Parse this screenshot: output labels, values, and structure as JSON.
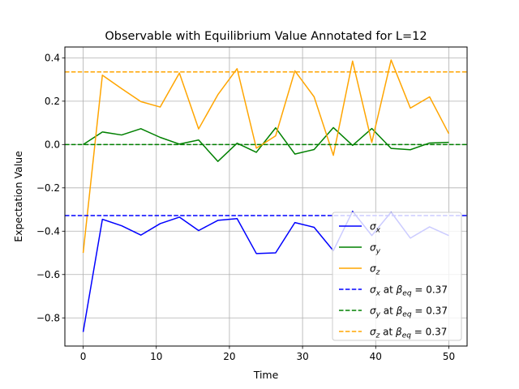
{
  "chart_data": {
    "type": "line",
    "title": "Observable with Equilibrium Value Annotated for L=12",
    "xlabel": "Time",
    "ylabel": "Expectation Value",
    "xlim": [
      -2.5,
      52.5
    ],
    "ylim": [
      -0.93,
      0.45
    ],
    "xticks": [
      0,
      10,
      20,
      30,
      40,
      50
    ],
    "yticks": [
      -0.8,
      -0.6,
      -0.4,
      -0.2,
      0.0,
      0.2,
      0.4
    ],
    "grid": true,
    "legend_position": "lower-right",
    "x": [
      0,
      2.63,
      5.26,
      7.89,
      10.53,
      13.16,
      15.79,
      18.42,
      21.05,
      23.68,
      26.32,
      28.95,
      31.58,
      34.21,
      36.84,
      39.47,
      42.11,
      44.74,
      47.37,
      50.0
    ],
    "series": [
      {
        "name": "σx",
        "color": "#0000ff",
        "style": "solid",
        "values": [
          -0.865,
          -0.345,
          -0.375,
          -0.418,
          -0.365,
          -0.335,
          -0.397,
          -0.35,
          -0.342,
          -0.503,
          -0.5,
          -0.36,
          -0.382,
          -0.49,
          -0.308,
          -0.42,
          -0.312,
          -0.432,
          -0.38,
          -0.42
        ]
      },
      {
        "name": "σy",
        "color": "#008000",
        "style": "solid",
        "values": [
          0.0,
          0.058,
          0.044,
          0.073,
          0.033,
          0.002,
          0.021,
          -0.078,
          0.006,
          -0.036,
          0.077,
          -0.044,
          -0.023,
          0.078,
          -0.004,
          0.074,
          -0.018,
          -0.024,
          0.007,
          0.01
        ]
      },
      {
        "name": "σz",
        "color": "#ffa500",
        "style": "solid",
        "values": [
          -0.5,
          0.32,
          0.258,
          0.198,
          0.173,
          0.33,
          0.072,
          0.23,
          0.35,
          -0.017,
          0.04,
          0.34,
          0.22,
          -0.05,
          0.385,
          0.01,
          0.39,
          0.168,
          0.22,
          0.05
        ]
      },
      {
        "name": "σx at βeq = 0.37",
        "color": "#0000ff",
        "style": "dashed",
        "value": -0.328
      },
      {
        "name": "σy at βeq = 0.37",
        "color": "#008000",
        "style": "dashed",
        "value": 0.0
      },
      {
        "name": "σz at βeq = 0.37",
        "color": "#ffa500",
        "style": "dashed",
        "value": 0.335
      }
    ]
  }
}
